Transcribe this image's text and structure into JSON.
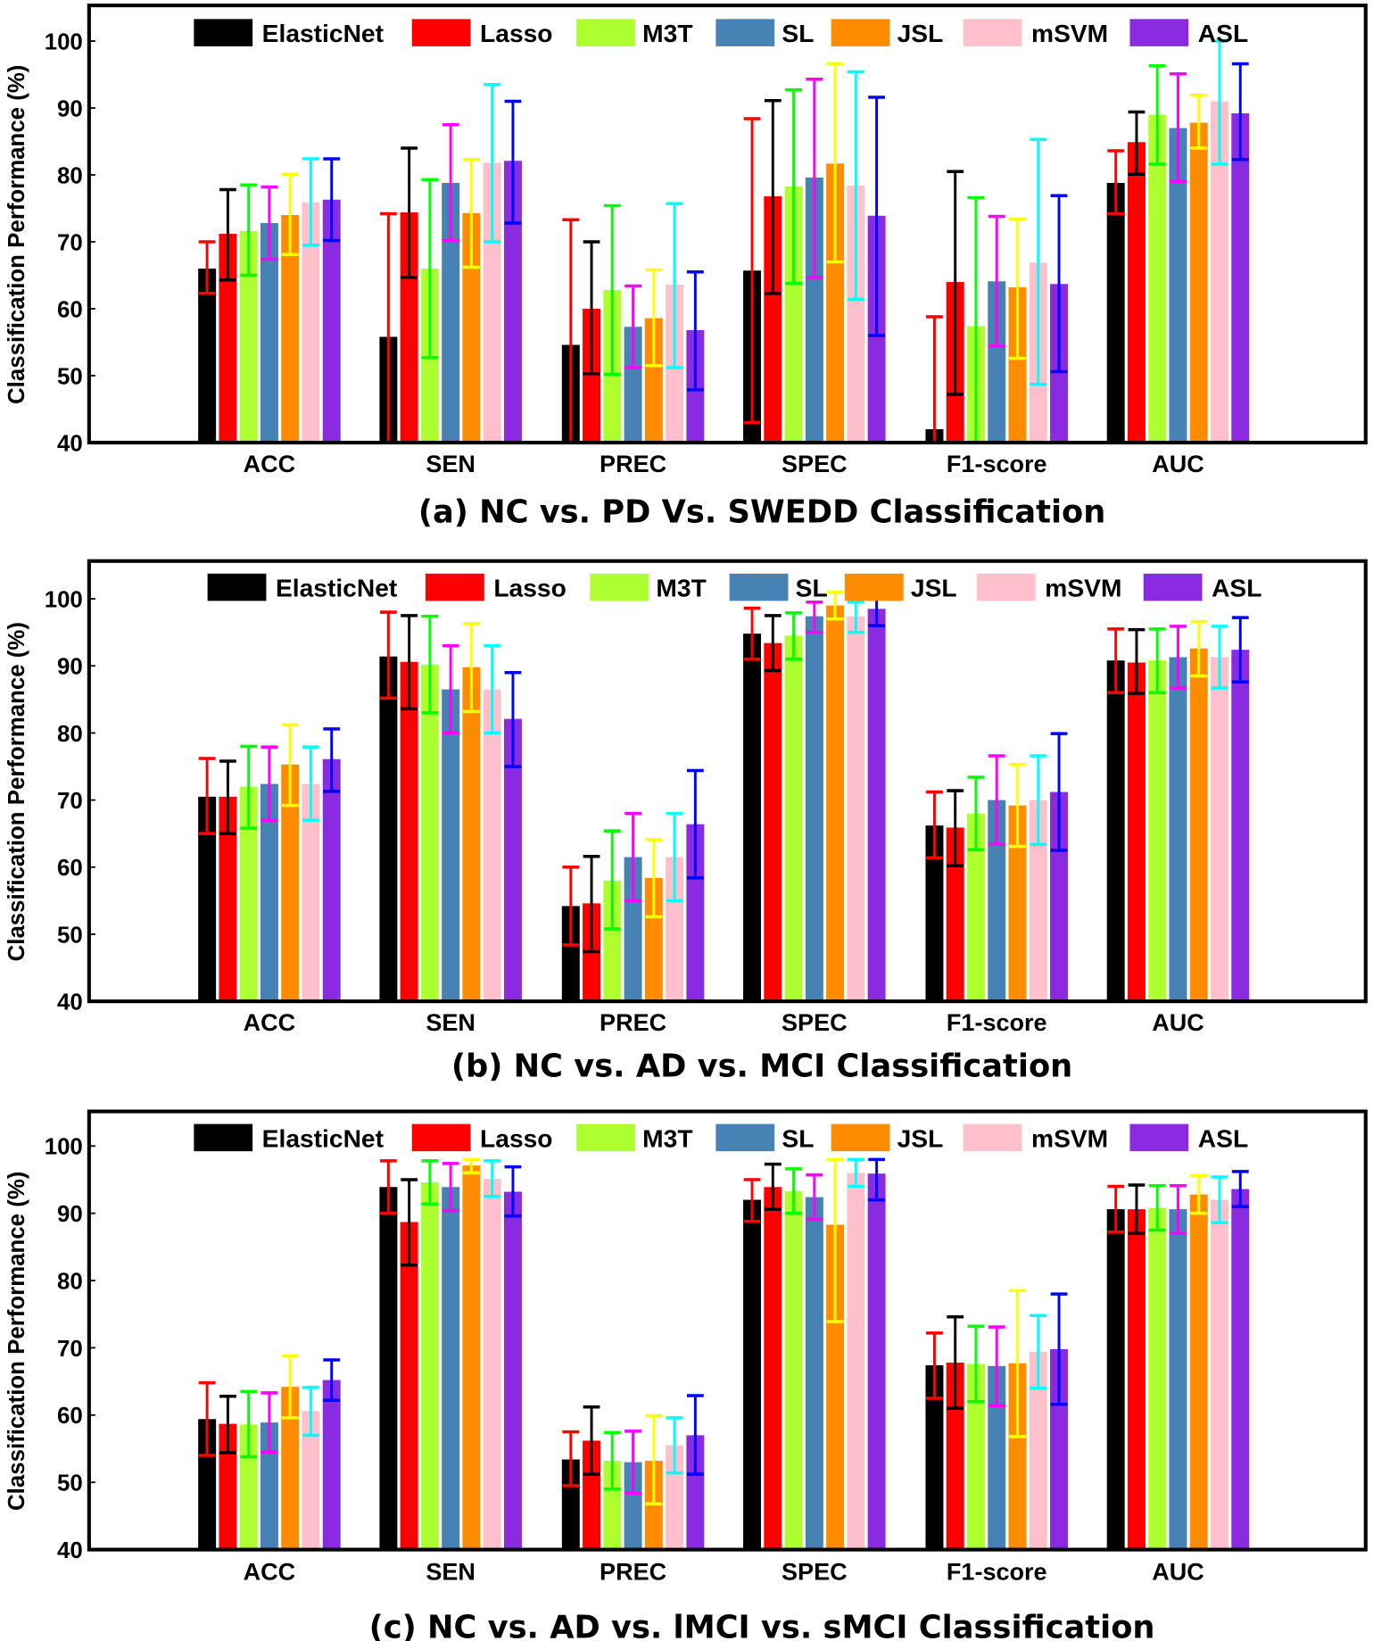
{
  "ylabel": "Classification Performance (%)",
  "yticks": [
    40,
    50,
    60,
    70,
    80,
    90,
    100
  ],
  "legend": [
    "ElasticNet",
    "Lasso",
    "M3T",
    "SL",
    "JSL",
    "mSVM",
    "ASL"
  ],
  "bar_colors": [
    "#000000",
    "#ff0000",
    "#adff2f",
    "#4682b4",
    "#ff8c00",
    "#ffc0cb",
    "#8a2be2"
  ],
  "error_colors": [
    "#ff0000",
    "#000000",
    "#00ff00",
    "#ff00ff",
    "#ffff00",
    "#00ffff",
    "#0000ff"
  ],
  "chart_data": [
    {
      "type": "bar",
      "title": "(a) NC vs. PD Vs. SWEDD Classification",
      "ylabel": "Classification Performance (%)",
      "ylim": [
        40,
        105
      ],
      "grid": false,
      "legend_position": "top",
      "categories": [
        "ACC",
        "SEN",
        "PREC",
        "SPEC",
        "F1-score",
        "AUC"
      ],
      "series": [
        {
          "name": "ElasticNet",
          "values": [
            66.0,
            55.8,
            54.6,
            65.7,
            42.0,
            78.8
          ],
          "err_low": [
            62.3,
            37.0,
            36.0,
            43.0,
            25.0,
            74.2
          ],
          "err_high": [
            70.0,
            74.2,
            73.3,
            88.4,
            58.8,
            83.6
          ]
        },
        {
          "name": "Lasso",
          "values": [
            71.2,
            74.4,
            60.0,
            76.8,
            64.0,
            84.9
          ],
          "err_low": [
            64.3,
            64.7,
            50.3,
            62.3,
            47.2,
            80.1
          ],
          "err_high": [
            77.8,
            84.0,
            70.0,
            91.1,
            80.5,
            89.4
          ]
        },
        {
          "name": "M3T",
          "values": [
            71.6,
            66.0,
            62.8,
            78.3,
            57.4,
            89.0
          ],
          "err_low": [
            65.0,
            52.7,
            50.2,
            63.8,
            38.0,
            81.6
          ],
          "err_high": [
            78.5,
            79.3,
            75.4,
            92.7,
            76.6,
            96.3
          ]
        },
        {
          "name": "SL",
          "values": [
            72.8,
            78.8,
            57.3,
            79.6,
            64.1,
            87.0
          ],
          "err_low": [
            67.4,
            70.2,
            51.2,
            64.7,
            54.4,
            79.0
          ],
          "err_high": [
            78.2,
            87.5,
            63.4,
            94.3,
            73.8,
            95.1
          ]
        },
        {
          "name": "JSL",
          "values": [
            74.0,
            74.3,
            58.6,
            81.7,
            63.2,
            87.8
          ],
          "err_low": [
            68.1,
            66.2,
            51.5,
            67.0,
            52.6,
            84.0
          ],
          "err_high": [
            80.1,
            82.3,
            65.8,
            96.6,
            73.4,
            91.9
          ]
        },
        {
          "name": "mSVM",
          "values": [
            75.9,
            81.8,
            63.6,
            78.4,
            66.9,
            91.0
          ],
          "err_low": [
            69.5,
            70.0,
            51.2,
            61.4,
            48.7,
            81.6
          ],
          "err_high": [
            82.4,
            93.5,
            75.7,
            95.4,
            85.3,
            100.0
          ]
        },
        {
          "name": "ASL",
          "values": [
            76.3,
            82.1,
            56.8,
            73.9,
            63.7,
            89.2
          ],
          "err_low": [
            70.2,
            72.8,
            47.9,
            56.0,
            50.6,
            82.3
          ],
          "err_high": [
            82.4,
            91.0,
            65.5,
            91.6,
            76.9,
            96.6
          ]
        }
      ]
    },
    {
      "type": "bar",
      "title": "(b) NC vs. AD vs. MCI Classification",
      "ylabel": "Classification Performance (%)",
      "ylim": [
        40,
        105
      ],
      "grid": false,
      "legend_position": "top",
      "categories": [
        "ACC",
        "SEN",
        "PREC",
        "SPEC",
        "F1-score",
        "AUC"
      ],
      "series": [
        {
          "name": "ElasticNet",
          "values": [
            70.5,
            91.4,
            54.2,
            94.8,
            66.2,
            90.8
          ],
          "err_low": [
            65.0,
            85.2,
            48.4,
            91.0,
            61.4,
            86.0
          ],
          "err_high": [
            76.2,
            98.0,
            60.0,
            98.6,
            71.2,
            95.5
          ]
        },
        {
          "name": "Lasso",
          "values": [
            70.5,
            90.6,
            54.6,
            93.4,
            65.9,
            90.5
          ],
          "err_low": [
            65.0,
            83.6,
            47.4,
            89.3,
            60.2,
            85.9
          ],
          "err_high": [
            75.8,
            97.5,
            61.6,
            97.5,
            71.4,
            95.4
          ]
        },
        {
          "name": "M3T",
          "values": [
            72.0,
            90.2,
            58.0,
            94.5,
            68.0,
            90.8
          ],
          "err_low": [
            65.8,
            83.0,
            50.8,
            91.0,
            62.6,
            86.0
          ],
          "err_high": [
            78.0,
            97.4,
            65.4,
            97.9,
            73.4,
            95.5
          ]
        },
        {
          "name": "SL",
          "values": [
            72.4,
            86.5,
            61.5,
            97.4,
            70.0,
            91.3
          ],
          "err_low": [
            67.0,
            80.0,
            55.0,
            95.0,
            63.4,
            86.7
          ],
          "err_high": [
            77.9,
            93.0,
            68.0,
            99.5,
            76.6,
            95.9
          ]
        },
        {
          "name": "JSL",
          "values": [
            75.3,
            89.8,
            58.4,
            99.0,
            69.2,
            92.6
          ],
          "err_low": [
            69.2,
            83.2,
            52.6,
            97.0,
            63.1,
            88.5
          ],
          "err_high": [
            81.2,
            96.3,
            64.1,
            101.0,
            75.3,
            96.6
          ]
        },
        {
          "name": "mSVM",
          "values": [
            72.4,
            86.5,
            61.5,
            97.4,
            70.0,
            91.3
          ],
          "err_low": [
            67.0,
            80.0,
            55.0,
            95.0,
            63.4,
            86.7
          ],
          "err_high": [
            77.9,
            93.0,
            68.0,
            99.5,
            76.6,
            95.9
          ]
        },
        {
          "name": "ASL",
          "values": [
            76.1,
            82.1,
            66.4,
            98.5,
            71.2,
            92.4
          ],
          "err_low": [
            71.3,
            75.0,
            58.4,
            96.0,
            62.5,
            87.6
          ],
          "err_high": [
            80.6,
            89.0,
            74.4,
            101.0,
            79.9,
            97.2
          ]
        }
      ]
    },
    {
      "type": "bar",
      "title": "(c) NC vs. AD vs. lMCI vs. sMCI Classification",
      "ylabel": "Classification Performance (%)",
      "ylim": [
        40,
        105
      ],
      "grid": false,
      "legend_position": "top",
      "categories": [
        "ACC",
        "SEN",
        "PREC",
        "SPEC",
        "F1-score",
        "AUC"
      ],
      "series": [
        {
          "name": "ElasticNet",
          "values": [
            59.4,
            93.9,
            53.4,
            92.0,
            67.4,
            90.6
          ],
          "err_low": [
            54.0,
            90.0,
            49.5,
            88.8,
            62.5,
            87.2
          ],
          "err_high": [
            64.8,
            97.8,
            57.5,
            95.0,
            72.2,
            94.0
          ]
        },
        {
          "name": "Lasso",
          "values": [
            58.7,
            88.7,
            56.2,
            93.9,
            67.8,
            90.6
          ],
          "err_low": [
            54.4,
            82.3,
            51.2,
            90.6,
            61.0,
            87.0
          ],
          "err_high": [
            62.8,
            95.0,
            61.2,
            97.3,
            74.6,
            94.2
          ]
        },
        {
          "name": "M3T",
          "values": [
            58.6,
            94.6,
            53.2,
            93.3,
            67.6,
            90.8
          ],
          "err_low": [
            53.8,
            91.4,
            49.0,
            90.0,
            62.0,
            87.5
          ],
          "err_high": [
            63.5,
            97.8,
            57.4,
            96.6,
            73.2,
            94.1
          ]
        },
        {
          "name": "SL",
          "values": [
            58.9,
            93.9,
            53.0,
            92.4,
            67.3,
            90.6
          ],
          "err_low": [
            54.5,
            90.4,
            48.4,
            89.1,
            61.4,
            87.0
          ],
          "err_high": [
            63.3,
            97.4,
            57.6,
            95.7,
            73.1,
            94.1
          ]
        },
        {
          "name": "JSL",
          "values": [
            64.2,
            97.1,
            53.2,
            88.3,
            67.7,
            92.8
          ],
          "err_low": [
            59.6,
            96.0,
            46.8,
            73.9,
            56.8,
            90.0
          ],
          "err_high": [
            68.8,
            98.0,
            59.9,
            98.0,
            78.5,
            95.6
          ]
        },
        {
          "name": "mSVM",
          "values": [
            60.6,
            95.1,
            55.5,
            96.0,
            69.4,
            92.0
          ],
          "err_low": [
            57.0,
            92.5,
            51.4,
            94.0,
            64.0,
            88.6
          ],
          "err_high": [
            64.1,
            97.8,
            59.6,
            98.0,
            74.8,
            95.4
          ]
        },
        {
          "name": "ASL",
          "values": [
            65.2,
            93.2,
            57.0,
            95.9,
            69.8,
            93.6
          ],
          "err_low": [
            62.2,
            89.6,
            51.2,
            92.0,
            61.6,
            91.0
          ],
          "err_high": [
            68.2,
            96.9,
            62.9,
            98.0,
            78.0,
            96.2
          ]
        }
      ]
    }
  ]
}
